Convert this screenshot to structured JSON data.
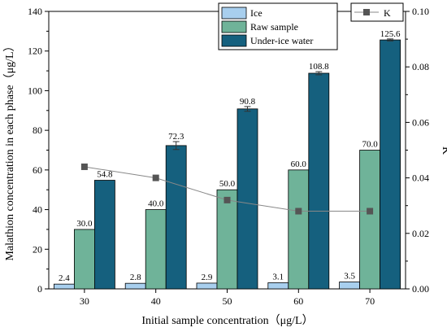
{
  "chart_data": {
    "type": "bar",
    "xlabel": "Initial sample concentration（μg/L）",
    "ylabel": "Malathion concentration in each phase（μg/L）",
    "y2label": "K",
    "categories": [
      "30",
      "40",
      "50",
      "60",
      "70"
    ],
    "ylim": [
      0,
      140
    ],
    "yticks": [
      "0",
      "20",
      "40",
      "60",
      "80",
      "100",
      "120",
      "140"
    ],
    "y2lim": [
      0,
      0.1
    ],
    "y2ticks": [
      "0.00",
      "0.02",
      "0.04",
      "0.06",
      "0.08",
      "0.10"
    ],
    "series": [
      {
        "name": "Ice",
        "color": "#a8cfee",
        "values": [
          2.4,
          2.8,
          2.9,
          3.1,
          3.5
        ],
        "labels": [
          "2.4",
          "2.8",
          "2.9",
          "3.1",
          "3.5"
        ],
        "errors": [
          0,
          0,
          0,
          0,
          0
        ]
      },
      {
        "name": "Raw sample",
        "color": "#6fb399",
        "values": [
          30.0,
          40.0,
          50.0,
          60.0,
          70.0
        ],
        "labels": [
          "30.0",
          "40.0",
          "50.0",
          "60.0",
          "70.0"
        ],
        "errors": [
          0,
          0,
          0,
          0,
          0
        ]
      },
      {
        "name": "Under-ice water",
        "color": "#15607e",
        "values": [
          54.8,
          72.3,
          90.8,
          108.8,
          125.6
        ],
        "labels": [
          "54.8",
          "72.3",
          "90.8",
          "108.8",
          "125.6"
        ],
        "errors": [
          0,
          2.0,
          1.2,
          0.8,
          0.5
        ]
      }
    ],
    "line_series": {
      "name": "K",
      "color": "#5a5a5a",
      "values": [
        0.044,
        0.04,
        0.032,
        0.028,
        0.028
      ]
    },
    "legend_position": "top"
  }
}
